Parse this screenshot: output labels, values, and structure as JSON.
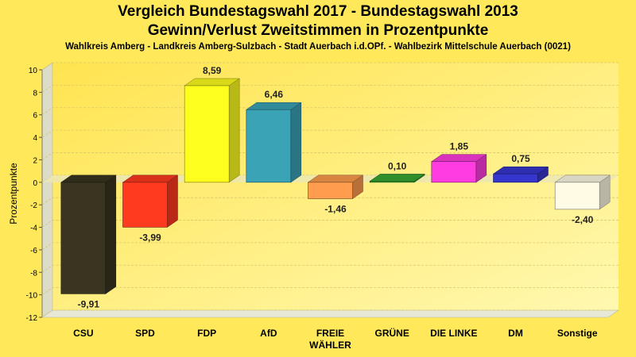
{
  "chart_data": {
    "type": "bar",
    "title_line1": "Vergleich Bundestagswahl 2017 - Bundestagswahl 2013",
    "title_line2": "Gewinn/Verlust Zweitstimmen in Prozentpunkte",
    "subtitle": "Wahlkreis Amberg - Landkreis Amberg-Sulzbach - Stadt Auerbach i.d.OPf. - Wahlbezirk Mittelschule Auerbach (0021)",
    "ylabel": "Prozentpunkte",
    "xlabel": "",
    "ylim": [
      -12,
      10
    ],
    "yticks": [
      -12,
      -10,
      -8,
      -6,
      -4,
      -2,
      0,
      2,
      4,
      6,
      8,
      10
    ],
    "grid": true,
    "categories": [
      {
        "line1": "CSU",
        "line2": ""
      },
      {
        "line1": "SPD",
        "line2": ""
      },
      {
        "line1": "FDP",
        "line2": ""
      },
      {
        "line1": "AfD",
        "line2": ""
      },
      {
        "line1": "FREIE",
        "line2": "WÄHLER"
      },
      {
        "line1": "GRÜNE",
        "line2": ""
      },
      {
        "line1": "DIE LINKE",
        "line2": ""
      },
      {
        "line1": "DM",
        "line2": ""
      },
      {
        "line1": "Sonstige",
        "line2": ""
      }
    ],
    "values": [
      -9.91,
      -3.99,
      8.59,
      6.46,
      -1.46,
      0.1,
      1.85,
      0.75,
      -2.4
    ],
    "value_labels": [
      "-9,91",
      "-3,99",
      "8,59",
      "6,46",
      "-1,46",
      "0,10",
      "1,85",
      "0,75",
      "-2,40"
    ],
    "colors": [
      "#3a3520",
      "#ff3a1e",
      "#ffff1e",
      "#3ba3b6",
      "#ff9c4e",
      "#38a832",
      "#ff3ce0",
      "#3636cf",
      "#fffbe4"
    ]
  }
}
